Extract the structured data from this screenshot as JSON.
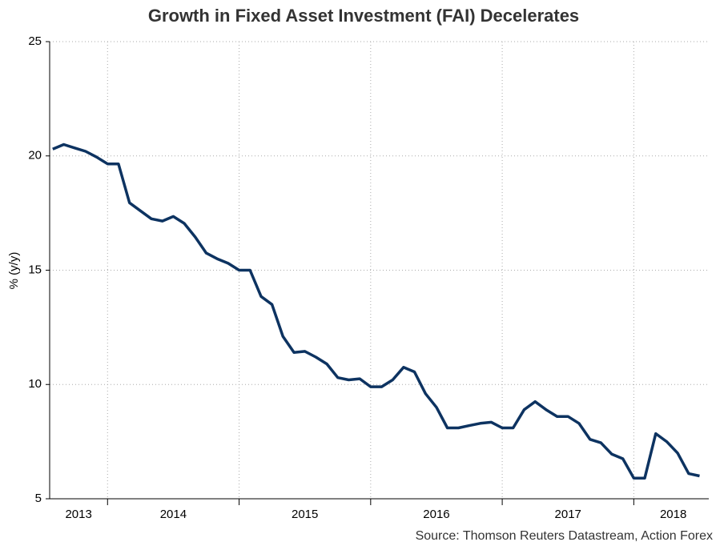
{
  "chart_data": {
    "type": "line",
    "title": "Growth in Fixed Asset Investment (FAI) Decelerates",
    "ylabel": "% (y/y)",
    "source": "Source: Thomson Reuters Datastream, Action Forex",
    "x": [
      2013.583,
      2013.667,
      2013.75,
      2013.833,
      2013.917,
      2014.0,
      2014.083,
      2014.167,
      2014.25,
      2014.333,
      2014.417,
      2014.5,
      2014.583,
      2014.667,
      2014.75,
      2014.833,
      2014.917,
      2015.0,
      2015.083,
      2015.167,
      2015.25,
      2015.333,
      2015.417,
      2015.5,
      2015.583,
      2015.667,
      2015.75,
      2015.833,
      2015.917,
      2016.0,
      2016.083,
      2016.167,
      2016.25,
      2016.333,
      2016.417,
      2016.5,
      2016.583,
      2016.667,
      2016.75,
      2016.833,
      2016.917,
      2017.0,
      2017.083,
      2017.167,
      2017.25,
      2017.333,
      2017.417,
      2017.5,
      2017.583,
      2017.667,
      2017.75,
      2017.833,
      2017.917,
      2018.0,
      2018.083,
      2018.167,
      2018.25,
      2018.333,
      2018.417,
      2018.5
    ],
    "series": [
      {
        "name": "FAI",
        "color": "#0d3361",
        "values": [
          20.3,
          20.5,
          20.35,
          20.2,
          19.95,
          19.65,
          19.65,
          17.95,
          17.6,
          17.25,
          17.15,
          17.35,
          17.05,
          16.45,
          15.75,
          15.5,
          15.3,
          15.0,
          15.0,
          13.85,
          13.5,
          12.1,
          11.4,
          11.45,
          11.2,
          10.9,
          10.3,
          10.2,
          10.25,
          9.9,
          9.9,
          10.2,
          10.75,
          10.55,
          9.6,
          9.0,
          8.1,
          8.1,
          8.2,
          8.3,
          8.35,
          8.1,
          8.1,
          8.9,
          9.25,
          8.9,
          8.6,
          8.6,
          8.3,
          7.6,
          7.45,
          6.95,
          6.75,
          5.9,
          5.9,
          7.85,
          7.5,
          7.0,
          6.1,
          6.0
        ]
      }
    ],
    "xlim": [
      2013.56,
      2018.57
    ],
    "xticks": [
      {
        "value": 2013.78,
        "label": "2013"
      },
      {
        "value": 2014.5,
        "label": "2014"
      },
      {
        "value": 2015.5,
        "label": "2015"
      },
      {
        "value": 2016.5,
        "label": "2016"
      },
      {
        "value": 2017.5,
        "label": "2017"
      },
      {
        "value": 2018.3,
        "label": "2018"
      }
    ],
    "xgrid": [
      2014,
      2015,
      2016,
      2017,
      2018
    ],
    "ylim": [
      5,
      25
    ],
    "yticks": [
      5,
      10,
      15,
      20,
      25
    ],
    "grid": true
  }
}
